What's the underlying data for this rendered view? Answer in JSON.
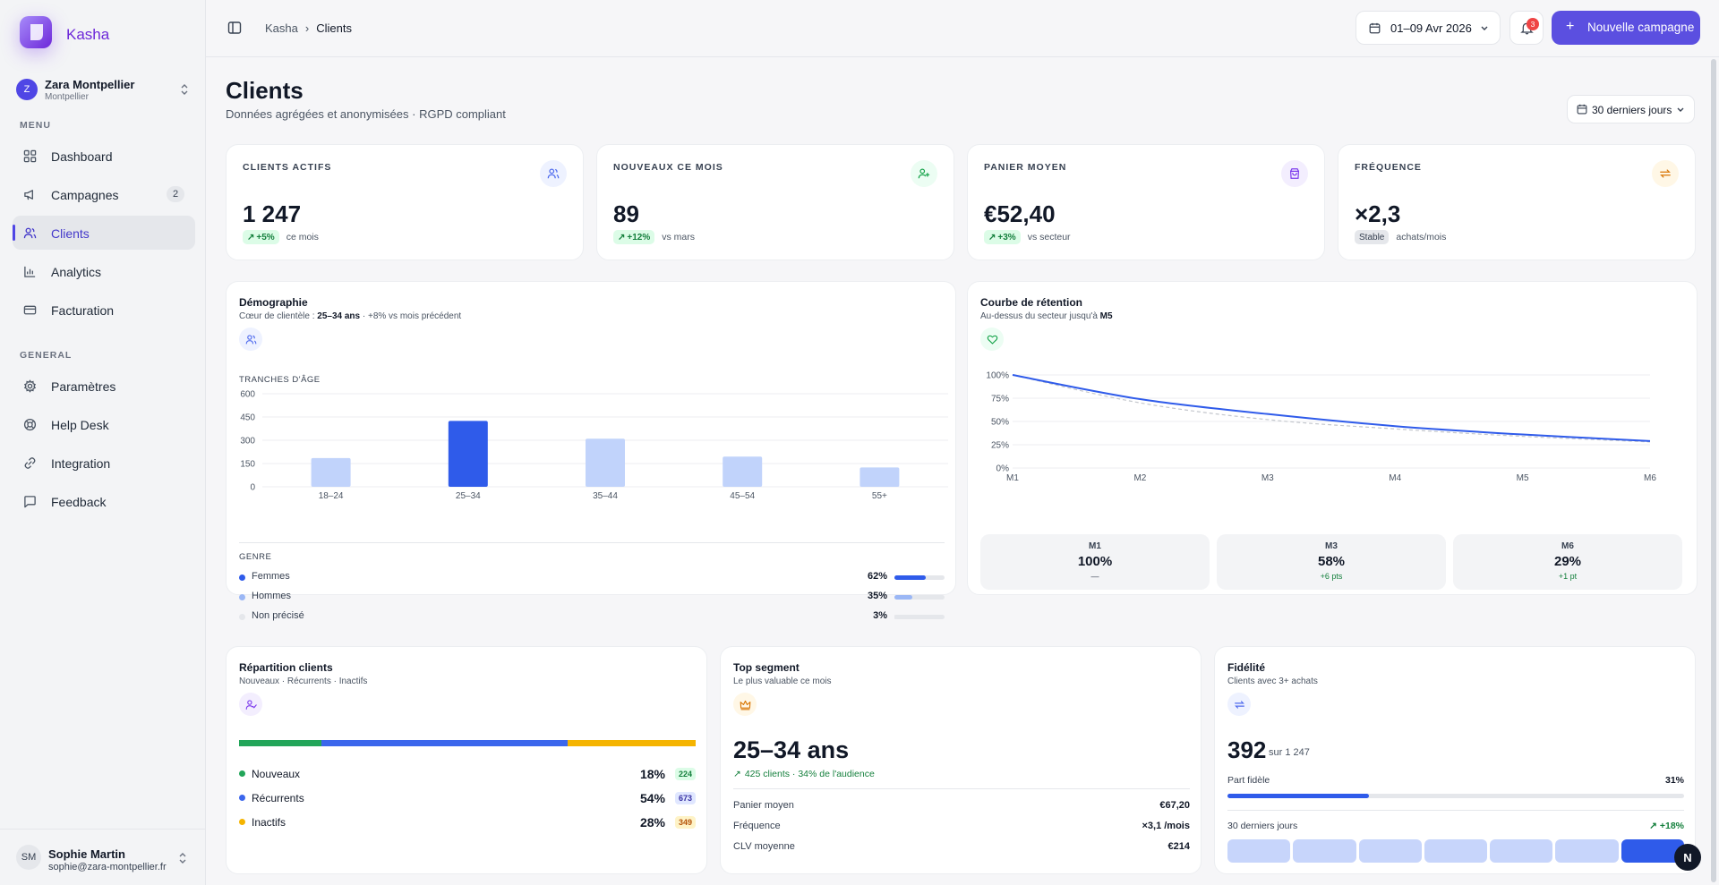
{
  "app": {
    "name": "Kasha"
  },
  "org": {
    "initial": "Z",
    "name": "Zara Montpellier",
    "city": "Montpellier"
  },
  "sidebar": {
    "menu_label": "MENU",
    "general_label": "GENERAL",
    "menu_items": [
      {
        "label": "Dashboard",
        "icon": "dashboard-icon"
      },
      {
        "label": "Campagnes",
        "icon": "megaphone-icon",
        "badge": "2"
      },
      {
        "label": "Clients",
        "icon": "users-icon",
        "active": true
      },
      {
        "label": "Analytics",
        "icon": "bar-chart-icon"
      },
      {
        "label": "Facturation",
        "icon": "credit-card-icon"
      }
    ],
    "general_items": [
      {
        "label": "Paramètres",
        "icon": "gear-icon"
      },
      {
        "label": "Help Desk",
        "icon": "lifebuoy-icon"
      },
      {
        "label": "Integration",
        "icon": "link-icon"
      },
      {
        "label": "Feedback",
        "icon": "message-icon"
      }
    ]
  },
  "user": {
    "initials": "SM",
    "name": "Sophie Martin",
    "email": "sophie@zara-montpellier.fr"
  },
  "topbar": {
    "breadcrumb": [
      "Kasha",
      "Clients"
    ],
    "date_range": "01–09 Avr 2026",
    "notifications": "3",
    "cta": "Nouvelle campagne"
  },
  "page": {
    "title": "Clients",
    "subtitle": "Données agrégées et anonymisées · RGPD compliant",
    "period": "30 derniers jours"
  },
  "kpis": [
    {
      "label": "CLIENTS ACTIFS",
      "value": "1 247",
      "delta": "+5%",
      "note": "ce mois",
      "icon": "users-icon",
      "color": "#4f6bed",
      "bg": "#eef2ff"
    },
    {
      "label": "NOUVEAUX CE MOIS",
      "value": "89",
      "delta": "+12%",
      "note": "vs mars",
      "icon": "user-plus-icon",
      "color": "#16a34a",
      "bg": "#ecfdf3"
    },
    {
      "label": "PANIER MOYEN",
      "value": "€52,40",
      "delta": "+3%",
      "note": "vs secteur",
      "icon": "shopping-bag-icon",
      "color": "#7c3aed",
      "bg": "#f3eefe"
    },
    {
      "label": "FRÉQUENCE",
      "value": "×2,3",
      "status": "Stable",
      "note": "achats/mois",
      "icon": "repeat-icon",
      "color": "#d97706",
      "bg": "#fff7e6"
    }
  ],
  "demographie": {
    "title": "Démographie",
    "sub_prefix": "Cœur de clientèle : ",
    "sub_strong": "25–34 ans",
    "sub_suffix": " · +8% vs mois précédent",
    "age_label": "TRANCHES D'ÂGE",
    "gender_label": "GENRE",
    "genders": [
      {
        "name": "Femmes",
        "pct": "62%",
        "value": 62,
        "color": "#2f5bea"
      },
      {
        "name": "Hommes",
        "pct": "35%",
        "value": 35,
        "color": "#9bb7f5"
      },
      {
        "name": "Non précisé",
        "pct": "3%",
        "value": 3,
        "color": "#e5e7eb"
      }
    ]
  },
  "retention": {
    "title": "Courbe de rétention",
    "sub_prefix": "Au-dessus du secteur jusqu'à ",
    "sub_strong": "M5",
    "boxes": [
      {
        "m": "M1",
        "v": "100%",
        "d": "—"
      },
      {
        "m": "M3",
        "v": "58%",
        "d": "+6 pts"
      },
      {
        "m": "M6",
        "v": "29%",
        "d": "+1 pt"
      }
    ]
  },
  "chart_data": [
    {
      "type": "bar",
      "title": "TRANCHES D'ÂGE",
      "categories": [
        "18–24",
        "25–34",
        "35–44",
        "45–54",
        "55+"
      ],
      "values": [
        185,
        425,
        310,
        195,
        125
      ],
      "highlight_index": 1,
      "ylim": [
        0,
        600
      ],
      "yticks": [
        0,
        150,
        300,
        450,
        600
      ],
      "grid": true
    },
    {
      "type": "line",
      "x": [
        "M1",
        "M2",
        "M3",
        "M4",
        "M5",
        "M6"
      ],
      "series": [
        {
          "values": [
            100,
            74,
            58,
            45,
            36,
            29
          ],
          "color": "#2f5bea",
          "style": "solid"
        },
        {
          "values": [
            100,
            70,
            52,
            42,
            34,
            28
          ],
          "color": "#c4c7cd",
          "style": "dashed"
        }
      ],
      "yticks": [
        "0%",
        "25%",
        "50%",
        "75%",
        "100%"
      ],
      "ylim": [
        0,
        100
      ],
      "grid": true
    }
  ],
  "repartition": {
    "title": "Répartition clients",
    "sub": "Nouveaux · Récurrents · Inactifs",
    "rows": [
      {
        "name": "Nouveaux",
        "pct": "18%",
        "value": 18,
        "count": "224",
        "color": "#22a559",
        "bg": "#dcfce7",
        "fg": "#15803d"
      },
      {
        "name": "Récurrents",
        "pct": "54%",
        "value": 54,
        "count": "673",
        "color": "#3b66ec",
        "bg": "#e0e7ff",
        "fg": "#3730a3"
      },
      {
        "name": "Inactifs",
        "pct": "28%",
        "value": 28,
        "count": "349",
        "color": "#f5b400",
        "bg": "#fef3c7",
        "fg": "#b45309"
      }
    ]
  },
  "segment": {
    "title": "Top segment",
    "sub": "Le plus valuable ce mois",
    "name": "25–34 ans",
    "line": "425 clients · 34% de l'audience",
    "rows": [
      {
        "k": "Panier moyen",
        "v": "€67,20"
      },
      {
        "k": "Fréquence",
        "v": "×3,1 /mois"
      },
      {
        "k": "CLV moyenne",
        "v": "€214"
      }
    ]
  },
  "fidelite": {
    "title": "Fidélité",
    "sub": "Clients avec 3+ achats",
    "value": "392",
    "sur": "sur 1 247",
    "part_label": "Part fidèle",
    "part_pct": "31%",
    "part_value": 31,
    "period_label": "30 derniers jours",
    "trend": "+18%",
    "spark_count": 7
  },
  "fab": "N"
}
